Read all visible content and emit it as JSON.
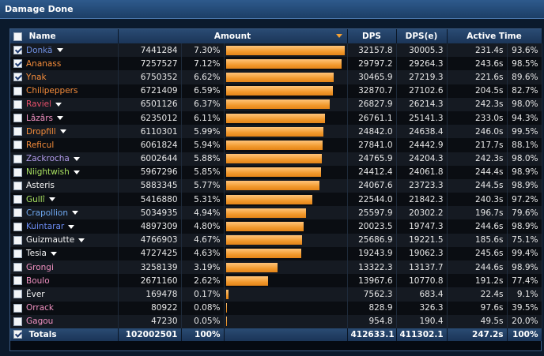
{
  "window": {
    "title": "Damage Done"
  },
  "table": {
    "headers": {
      "name": "Name",
      "amount": "Amount",
      "dps": "DPS",
      "dpse": "DPS(e)",
      "active_time": "Active Time"
    },
    "header_checked": false,
    "rows": [
      {
        "checked": true,
        "name": "Donkä",
        "color": "#6f8fe0",
        "dropdown": true,
        "amount": "7441284",
        "percent": "7.30%",
        "bar_fraction": 1.0,
        "dps": "32157.8",
        "dpse": "30005.3",
        "time": "231.4s",
        "time_pct": "93.6%"
      },
      {
        "checked": true,
        "name": "Ananass",
        "color": "#f58c3a",
        "dropdown": false,
        "amount": "7257527",
        "percent": "7.12%",
        "bar_fraction": 0.9753,
        "dps": "29797.2",
        "dpse": "29264.3",
        "time": "243.6s",
        "time_pct": "98.5%"
      },
      {
        "checked": true,
        "name": "Ynak",
        "color": "#f58c3a",
        "dropdown": false,
        "amount": "6750352",
        "percent": "6.62%",
        "bar_fraction": 0.9072,
        "dps": "30465.9",
        "dpse": "27219.3",
        "time": "221.6s",
        "time_pct": "89.6%"
      },
      {
        "checked": false,
        "name": "Chilipeppers",
        "color": "#f58c3a",
        "dropdown": false,
        "amount": "6721409",
        "percent": "6.59%",
        "bar_fraction": 0.9033,
        "dps": "32870.7",
        "dpse": "27102.6",
        "time": "204.5s",
        "time_pct": "82.7%"
      },
      {
        "checked": false,
        "name": "Raviel",
        "color": "#e8506a",
        "dropdown": true,
        "amount": "6501126",
        "percent": "6.37%",
        "bar_fraction": 0.8737,
        "dps": "26827.9",
        "dpse": "26214.3",
        "time": "242.3s",
        "time_pct": "98.0%"
      },
      {
        "checked": false,
        "name": "Lâzârs",
        "color": "#f090c0",
        "dropdown": true,
        "amount": "6235012",
        "percent": "6.11%",
        "bar_fraction": 0.8379,
        "dps": "26761.1",
        "dpse": "25141.3",
        "time": "233.0s",
        "time_pct": "94.3%"
      },
      {
        "checked": false,
        "name": "Dropfill",
        "color": "#f58c3a",
        "dropdown": true,
        "amount": "6110301",
        "percent": "5.99%",
        "bar_fraction": 0.8211,
        "dps": "24842.0",
        "dpse": "24638.4",
        "time": "246.0s",
        "time_pct": "99.5%"
      },
      {
        "checked": false,
        "name": "Reficul",
        "color": "#f58c3a",
        "dropdown": false,
        "amount": "6061824",
        "percent": "5.94%",
        "bar_fraction": 0.8146,
        "dps": "27841.0",
        "dpse": "24442.9",
        "time": "217.7s",
        "time_pct": "88.1%"
      },
      {
        "checked": false,
        "name": "Zackrocha",
        "color": "#b09ae8",
        "dropdown": true,
        "amount": "6002644",
        "percent": "5.88%",
        "bar_fraction": 0.8067,
        "dps": "24765.9",
        "dpse": "24204.3",
        "time": "242.3s",
        "time_pct": "98.0%"
      },
      {
        "checked": false,
        "name": "Niightwish",
        "color": "#a8e060",
        "dropdown": true,
        "amount": "5967296",
        "percent": "5.85%",
        "bar_fraction": 0.8019,
        "dps": "24412.4",
        "dpse": "24061.8",
        "time": "244.4s",
        "time_pct": "98.9%"
      },
      {
        "checked": false,
        "name": "Asteris",
        "color": "#f5f5f5",
        "dropdown": false,
        "amount": "5883345",
        "percent": "5.77%",
        "bar_fraction": 0.7906,
        "dps": "24067.6",
        "dpse": "23723.3",
        "time": "244.5s",
        "time_pct": "98.9%"
      },
      {
        "checked": false,
        "name": "Gullî",
        "color": "#a8e060",
        "dropdown": true,
        "amount": "5416880",
        "percent": "5.31%",
        "bar_fraction": 0.728,
        "dps": "22544.0",
        "dpse": "21842.3",
        "time": "240.3s",
        "time_pct": "97.2%"
      },
      {
        "checked": false,
        "name": "Crapollion",
        "color": "#6fa8f0",
        "dropdown": true,
        "amount": "5034935",
        "percent": "4.94%",
        "bar_fraction": 0.6766,
        "dps": "25597.9",
        "dpse": "20302.2",
        "time": "196.7s",
        "time_pct": "79.6%"
      },
      {
        "checked": false,
        "name": "Kuintarar",
        "color": "#6a8af0",
        "dropdown": true,
        "amount": "4897309",
        "percent": "4.80%",
        "bar_fraction": 0.6581,
        "dps": "20023.5",
        "dpse": "19747.3",
        "time": "244.6s",
        "time_pct": "98.9%"
      },
      {
        "checked": false,
        "name": "Guizmautte",
        "color": "#f5f5f5",
        "dropdown": true,
        "amount": "4766903",
        "percent": "4.67%",
        "bar_fraction": 0.6406,
        "dps": "25686.9",
        "dpse": "19221.5",
        "time": "185.6s",
        "time_pct": "75.1%"
      },
      {
        "checked": false,
        "name": "Tesia",
        "color": "#f5f5f5",
        "dropdown": true,
        "amount": "4727425",
        "percent": "4.63%",
        "bar_fraction": 0.6353,
        "dps": "19243.9",
        "dpse": "19062.3",
        "time": "245.6s",
        "time_pct": "99.4%"
      },
      {
        "checked": false,
        "name": "Grongi",
        "color": "#f090c0",
        "dropdown": false,
        "amount": "3258139",
        "percent": "3.19%",
        "bar_fraction": 0.4378,
        "dps": "13322.3",
        "dpse": "13137.7",
        "time": "244.6s",
        "time_pct": "98.9%"
      },
      {
        "checked": false,
        "name": "Boulo",
        "color": "#f090c0",
        "dropdown": false,
        "amount": "2671160",
        "percent": "2.62%",
        "bar_fraction": 0.359,
        "dps": "13967.6",
        "dpse": "10770.8",
        "time": "191.2s",
        "time_pct": "77.4%"
      },
      {
        "checked": false,
        "name": "Ëver",
        "color": "#f5f5f5",
        "dropdown": false,
        "amount": "169478",
        "percent": "0.17%",
        "bar_fraction": 0.0228,
        "dps": "7562.3",
        "dpse": "683.4",
        "time": "22.4s",
        "time_pct": "9.1%"
      },
      {
        "checked": false,
        "name": "Orrack",
        "color": "#f090c0",
        "dropdown": false,
        "amount": "80922",
        "percent": "0.08%",
        "bar_fraction": 0.0109,
        "dps": "828.9",
        "dpse": "326.3",
        "time": "97.6s",
        "time_pct": "39.5%"
      },
      {
        "checked": false,
        "name": "Gagou",
        "color": "#f090c0",
        "dropdown": false,
        "amount": "47230",
        "percent": "0.05%",
        "bar_fraction": 0.0063,
        "dps": "954.8",
        "dpse": "190.4",
        "time": "49.5s",
        "time_pct": "20.0%"
      }
    ],
    "totals": {
      "checked": true,
      "label": "Totals",
      "amount": "102002501",
      "percent": "100%",
      "dps": "412633.1",
      "dpse": "411302.1",
      "time": "247.2s",
      "time_pct": "100%"
    }
  },
  "colors": {
    "bar": "#f29a2e",
    "header": "#2a4b73",
    "accent_sort": "#f5a133"
  }
}
